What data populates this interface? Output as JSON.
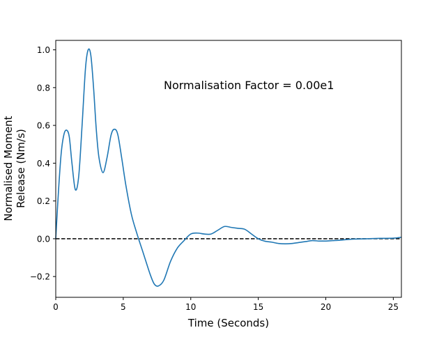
{
  "chart_data": {
    "type": "line",
    "title": "",
    "xlabel": "Time (Seconds)",
    "ylabel_lines": [
      "Normalised Moment",
      "Release (Nm/s)"
    ],
    "annotation": "Normalisation Factor = 0.00e1",
    "xlim": [
      0,
      25.6
    ],
    "ylim": [
      -0.31,
      1.05
    ],
    "xticks": [
      0,
      5,
      10,
      15,
      20,
      25
    ],
    "yticks": [
      -0.2,
      0.0,
      0.2,
      0.4,
      0.6,
      0.8,
      1.0
    ],
    "xtick_labels": [
      "0",
      "5",
      "10",
      "15",
      "20",
      "25"
    ],
    "ytick_labels": [
      "−0.2",
      "0.0",
      "0.2",
      "0.4",
      "0.6",
      "0.8",
      "1.0"
    ],
    "grid": false,
    "reference_line": {
      "y": 0.0,
      "style": "dashed",
      "color": "#000000"
    },
    "series": [
      {
        "color": "#1f77b4",
        "x": [
          0,
          0.2,
          0.4,
          0.6,
          0.8,
          1.0,
          1.2,
          1.45,
          1.7,
          1.95,
          2.2,
          2.4,
          2.6,
          2.8,
          3.0,
          3.2,
          3.5,
          3.8,
          4.1,
          4.35,
          4.6,
          4.9,
          5.2,
          5.6,
          6.0,
          6.5,
          7.0,
          7.3,
          7.6,
          8.0,
          8.5,
          9.0,
          9.5,
          10.0,
          10.5,
          11.0,
          11.5,
          12.0,
          12.5,
          13.0,
          13.5,
          14.0,
          14.5,
          15.0,
          15.5,
          16.0,
          16.5,
          17.0,
          17.5,
          18.0,
          18.5,
          19.0,
          19.5,
          20.0,
          20.5,
          21.0,
          22.0,
          23.0,
          24.0,
          25.0,
          25.6
        ],
        "y": [
          0.0,
          0.25,
          0.45,
          0.55,
          0.575,
          0.54,
          0.4,
          0.26,
          0.33,
          0.6,
          0.9,
          1.0,
          0.97,
          0.8,
          0.58,
          0.43,
          0.35,
          0.43,
          0.55,
          0.58,
          0.55,
          0.42,
          0.28,
          0.13,
          0.03,
          -0.08,
          -0.19,
          -0.24,
          -0.25,
          -0.22,
          -0.12,
          -0.05,
          -0.01,
          0.025,
          0.03,
          0.025,
          0.025,
          0.045,
          0.065,
          0.06,
          0.055,
          0.05,
          0.025,
          0.0,
          -0.013,
          -0.018,
          -0.025,
          -0.027,
          -0.025,
          -0.02,
          -0.015,
          -0.01,
          -0.012,
          -0.012,
          -0.01,
          -0.008,
          -0.002,
          0.0,
          0.002,
          0.003,
          0.008
        ]
      }
    ]
  }
}
